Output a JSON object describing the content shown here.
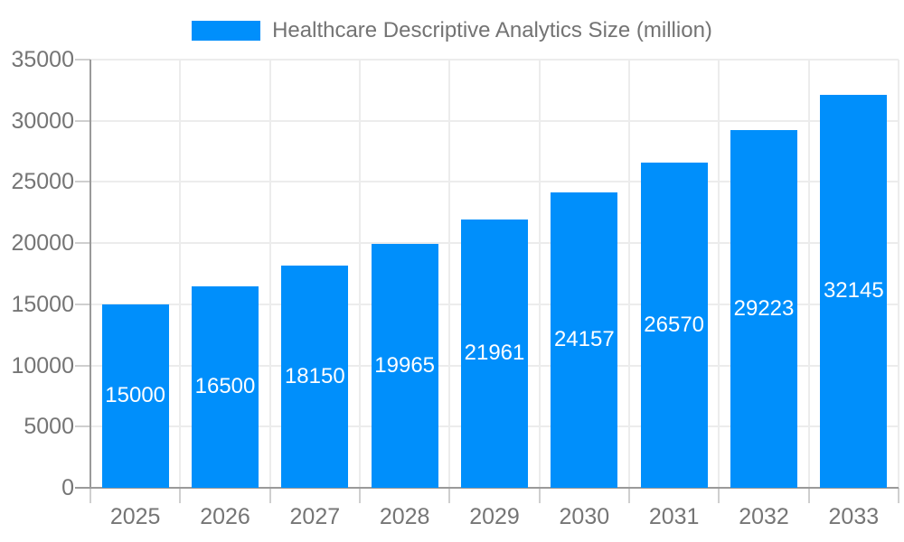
{
  "legend": {
    "label": "Healthcare Descriptive Analytics Size (million)"
  },
  "chart_data": {
    "type": "bar",
    "title": "Healthcare Descriptive Analytics Size (million)",
    "categories": [
      "2025",
      "2026",
      "2027",
      "2028",
      "2029",
      "2030",
      "2031",
      "2032",
      "2033"
    ],
    "values": [
      15000,
      16500,
      18150,
      19965,
      21961,
      24157,
      26570,
      29223,
      32145
    ],
    "value_labels": [
      "15000",
      "16500",
      "18150",
      "19965",
      "21961",
      "24157",
      "26570",
      "29223",
      "32145"
    ],
    "xlabel": "",
    "ylabel": "",
    "ylim": [
      0,
      35000
    ],
    "yticks": [
      0,
      5000,
      10000,
      15000,
      20000,
      25000,
      30000,
      35000
    ],
    "ytick_labels": [
      "0",
      "5000",
      "10000",
      "15000",
      "20000",
      "25000",
      "30000",
      "35000"
    ],
    "grid": true,
    "legend_position": "top",
    "bar_color": "#008FFB",
    "value_label_color": "#ffffff",
    "axis_label_color": "#757575",
    "title_color": "#737373",
    "gridline_color": "#ececec",
    "axis_line_color": "#9a9a9a",
    "tick_color": "#cfcfcf",
    "background_color": "#ffffff"
  }
}
